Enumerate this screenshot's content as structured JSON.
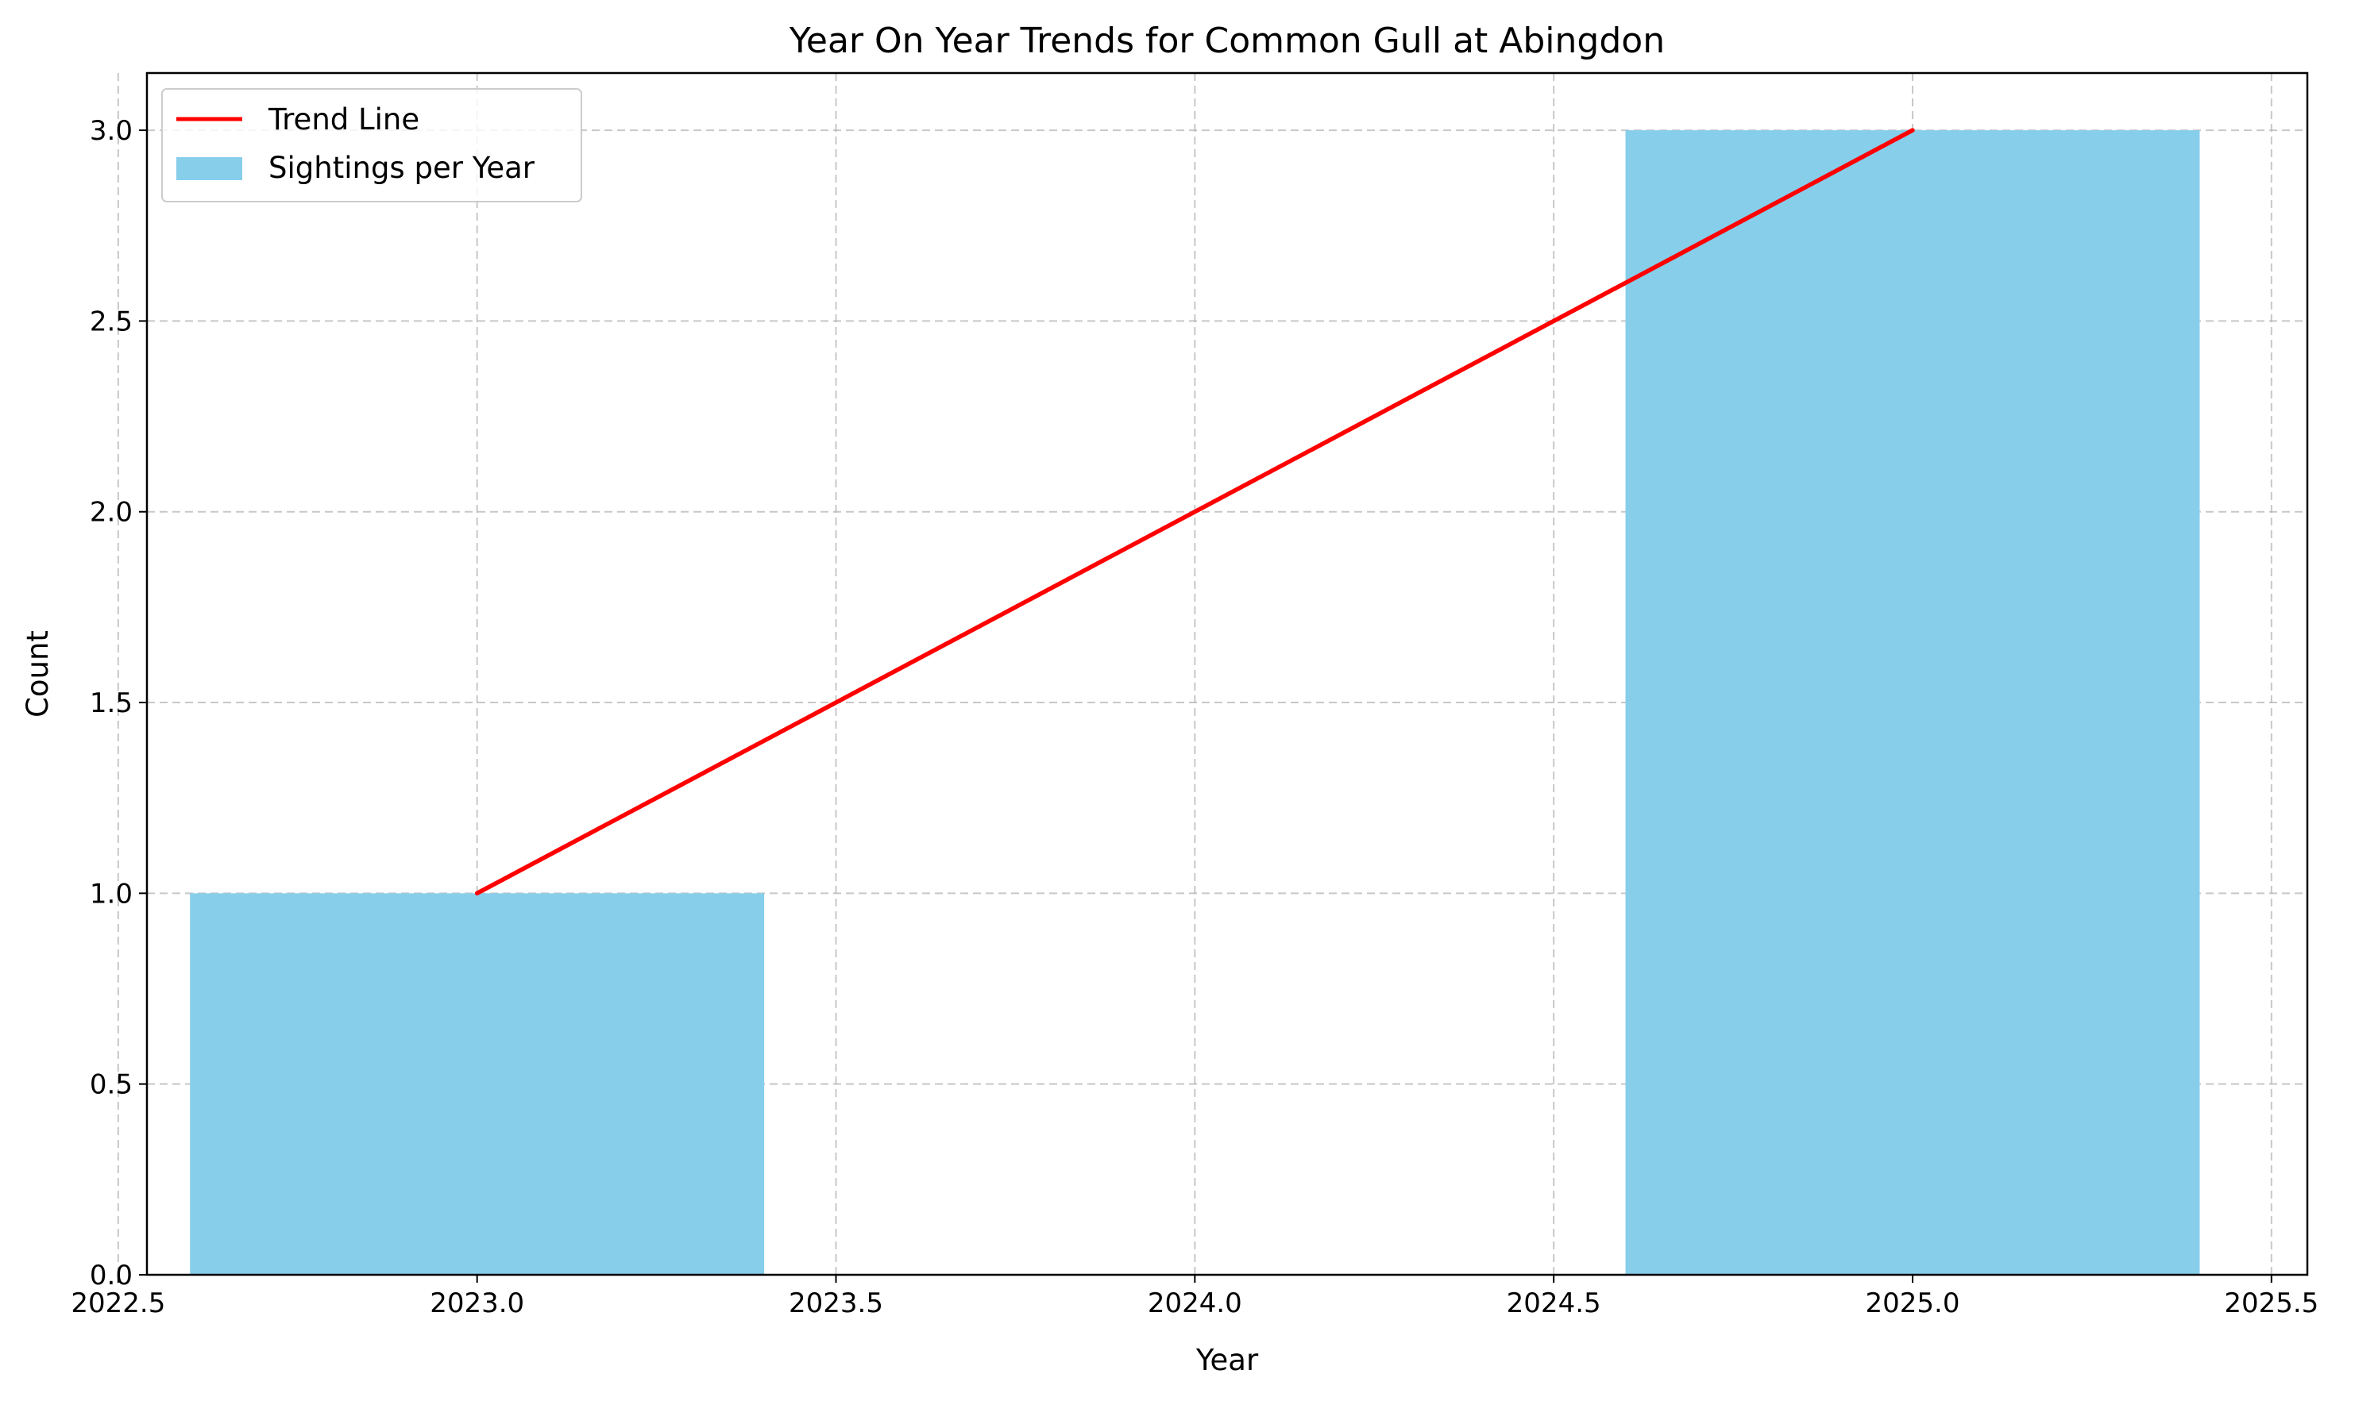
{
  "chart_data": {
    "type": "bar",
    "title": "Year On Year Trends for Common Gull at Abingdon",
    "xlabel": "Year",
    "ylabel": "Count",
    "xlim": [
      2022.54,
      2025.55
    ],
    "ylim": [
      0,
      3.15
    ],
    "xticks": [
      2022.5,
      2023.0,
      2023.5,
      2024.0,
      2024.5,
      2025.0,
      2025.5
    ],
    "xtick_labels": [
      "2022.5",
      "2023.0",
      "2023.5",
      "2024.0",
      "2024.5",
      "2025.0",
      "2025.5"
    ],
    "yticks": [
      0.0,
      0.5,
      1.0,
      1.5,
      2.0,
      2.5,
      3.0
    ],
    "ytick_labels": [
      "0.0",
      "0.5",
      "1.0",
      "1.5",
      "2.0",
      "2.5",
      "3.0"
    ],
    "grid": true,
    "legend_position": "top-left",
    "bars": {
      "name": "Sightings per Year",
      "color": "#87CEEB",
      "width": 0.8,
      "x": [
        2023,
        2025
      ],
      "values": [
        1,
        3
      ]
    },
    "trend_line": {
      "name": "Trend Line",
      "color": "#FF0000",
      "x": [
        2023,
        2025
      ],
      "y": [
        1,
        3
      ]
    }
  }
}
